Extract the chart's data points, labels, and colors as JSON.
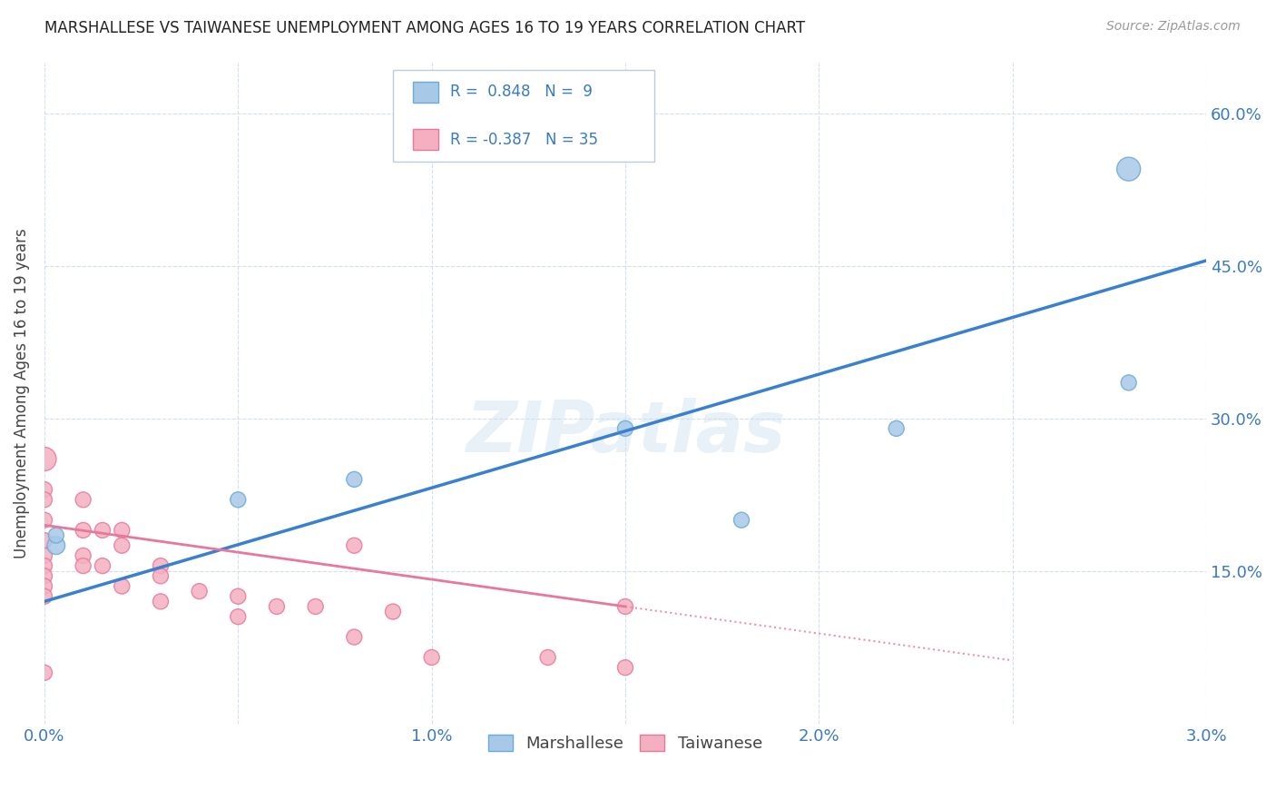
{
  "title": "MARSHALLESE VS TAIWANESE UNEMPLOYMENT AMONG AGES 16 TO 19 YEARS CORRELATION CHART",
  "source": "Source: ZipAtlas.com",
  "ylabel": "Unemployment Among Ages 16 to 19 years",
  "xlim": [
    0.0,
    0.03
  ],
  "ylim": [
    0.0,
    0.65
  ],
  "xticks": [
    0.0,
    0.005,
    0.01,
    0.015,
    0.02,
    0.025,
    0.03
  ],
  "xtick_labels": [
    "0.0%",
    "",
    "1.0%",
    "",
    "2.0%",
    "",
    "3.0%"
  ],
  "yticks": [
    0.0,
    0.15,
    0.3,
    0.45,
    0.6
  ],
  "ytick_labels": [
    "",
    "15.0%",
    "30.0%",
    "45.0%",
    "60.0%"
  ],
  "marshallese_color": "#a8c8e8",
  "taiwanese_color": "#f4b0c0",
  "marshallese_edge": "#6aaad4",
  "taiwanese_edge": "#e8789a",
  "trendline_marshallese": "#3a80d0",
  "trendline_taiwanese": "#e8789a",
  "legend_bottom_1": "Marshallese",
  "legend_bottom_2": "Taiwanese",
  "marshallese_x": [
    0.0003,
    0.0003,
    0.005,
    0.008,
    0.015,
    0.018,
    0.022,
    0.028,
    0.028
  ],
  "marshallese_y": [
    0.175,
    0.185,
    0.22,
    0.24,
    0.29,
    0.2,
    0.29,
    0.335,
    0.545
  ],
  "marshallese_sizes": [
    200,
    150,
    150,
    150,
    150,
    150,
    150,
    150,
    350
  ],
  "taiwanese_x": [
    0.0,
    0.0,
    0.0,
    0.0,
    0.0,
    0.0,
    0.0,
    0.0,
    0.0,
    0.0,
    0.0,
    0.001,
    0.001,
    0.001,
    0.001,
    0.0015,
    0.0015,
    0.002,
    0.002,
    0.002,
    0.003,
    0.003,
    0.003,
    0.004,
    0.005,
    0.005,
    0.006,
    0.007,
    0.008,
    0.008,
    0.009,
    0.01,
    0.013,
    0.015,
    0.015
  ],
  "taiwanese_y": [
    0.26,
    0.23,
    0.22,
    0.2,
    0.18,
    0.165,
    0.155,
    0.145,
    0.135,
    0.125,
    0.05,
    0.22,
    0.19,
    0.165,
    0.155,
    0.19,
    0.155,
    0.19,
    0.175,
    0.135,
    0.155,
    0.145,
    0.12,
    0.13,
    0.125,
    0.105,
    0.115,
    0.115,
    0.085,
    0.175,
    0.11,
    0.065,
    0.065,
    0.055,
    0.115
  ],
  "taiwanese_sizes": [
    350,
    150,
    150,
    150,
    150,
    150,
    150,
    150,
    150,
    150,
    150,
    150,
    150,
    150,
    150,
    150,
    150,
    150,
    150,
    150,
    150,
    150,
    150,
    150,
    150,
    150,
    150,
    150,
    150,
    150,
    150,
    150,
    150,
    150,
    150
  ],
  "trend_m_x0": 0.0,
  "trend_m_y0": 0.12,
  "trend_m_x1": 0.03,
  "trend_m_y1": 0.455,
  "trend_t_solid_x0": 0.0,
  "trend_t_solid_y0": 0.195,
  "trend_t_solid_x1": 0.015,
  "trend_t_solid_y1": 0.115,
  "trend_t_dash_x0": 0.015,
  "trend_t_dash_y0": 0.115,
  "trend_t_dash_x1": 0.025,
  "trend_t_dash_y1": 0.062
}
